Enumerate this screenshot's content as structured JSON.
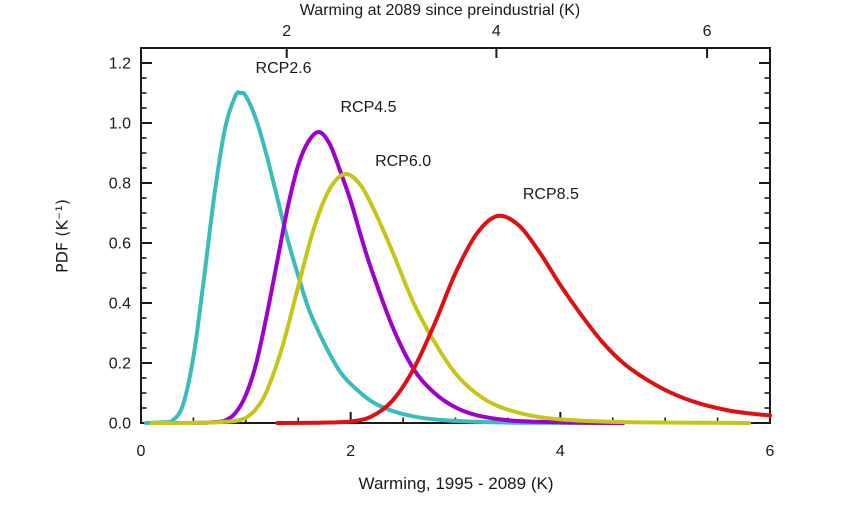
{
  "chart_data": {
    "type": "line",
    "title": "Warming at 2089 since preindustrial (K)",
    "xlabel": "Warming, 1995 - 2089 (K)",
    "ylabel": "PDF (K⁻¹)",
    "xlim": [
      0,
      6
    ],
    "ylim": [
      0,
      1.25
    ],
    "grid": false,
    "legend_position": "inline-labels",
    "x_major_ticks": [
      {
        "label": "0",
        "v": 0
      },
      {
        "label": "2",
        "v": 2
      },
      {
        "label": "4",
        "v": 4
      },
      {
        "label": "6",
        "v": 6
      }
    ],
    "x_minor_step": 0.5,
    "y_major_ticks": [
      {
        "label": "0.0",
        "v": 0.0
      },
      {
        "label": "0.2",
        "v": 0.2
      },
      {
        "label": "0.4",
        "v": 0.4
      },
      {
        "label": "0.6",
        "v": 0.6
      },
      {
        "label": "0.8",
        "v": 0.8
      },
      {
        "label": "1.0",
        "v": 1.0
      },
      {
        "label": "1.2",
        "v": 1.2
      }
    ],
    "y_minor_step": 0.05,
    "top_axis": {
      "label": "Warming at 2089 since preindustrial (K)",
      "offset_K": 0.61,
      "ticks": [
        {
          "label": "2",
          "bottom_x": 1.39
        },
        {
          "label": "4",
          "bottom_x": 3.39
        },
        {
          "label": "6",
          "bottom_x": 5.4
        }
      ]
    },
    "series": [
      {
        "name": "RCP2.6",
        "color": "#3bbcbc",
        "peak": {
          "x": 0.95,
          "y": 1.1
        },
        "label_pos": [
          1.36,
          1.18
        ],
        "points": [
          [
            0.05,
            0
          ],
          [
            0.2,
            0.002
          ],
          [
            0.3,
            0.008
          ],
          [
            0.4,
            0.06
          ],
          [
            0.5,
            0.22
          ],
          [
            0.6,
            0.48
          ],
          [
            0.7,
            0.76
          ],
          [
            0.8,
            0.98
          ],
          [
            0.9,
            1.09
          ],
          [
            0.95,
            1.1
          ],
          [
            1.0,
            1.09
          ],
          [
            1.1,
            1.01
          ],
          [
            1.2,
            0.89
          ],
          [
            1.3,
            0.75
          ],
          [
            1.4,
            0.61
          ],
          [
            1.5,
            0.49
          ],
          [
            1.6,
            0.38
          ],
          [
            1.7,
            0.3
          ],
          [
            1.8,
            0.23
          ],
          [
            1.9,
            0.17
          ],
          [
            2.0,
            0.13
          ],
          [
            2.2,
            0.072
          ],
          [
            2.4,
            0.04
          ],
          [
            2.6,
            0.022
          ],
          [
            2.8,
            0.012
          ],
          [
            3.0,
            0.007
          ],
          [
            3.3,
            0.003
          ],
          [
            3.6,
            0.001
          ],
          [
            4.0,
            0.0005
          ],
          [
            4.5,
            0
          ]
        ]
      },
      {
        "name": "RCP4.5",
        "color": "#9f00cb",
        "peak": {
          "x": 1.7,
          "y": 0.97
        },
        "label_pos": [
          2.17,
          1.05
        ],
        "points": [
          [
            0.5,
            0
          ],
          [
            0.6,
            0.001
          ],
          [
            0.7,
            0.003
          ],
          [
            0.8,
            0.008
          ],
          [
            0.9,
            0.033
          ],
          [
            1.0,
            0.093
          ],
          [
            1.1,
            0.2
          ],
          [
            1.2,
            0.36
          ],
          [
            1.3,
            0.54
          ],
          [
            1.4,
            0.72
          ],
          [
            1.5,
            0.86
          ],
          [
            1.6,
            0.94
          ],
          [
            1.7,
            0.97
          ],
          [
            1.8,
            0.93
          ],
          [
            1.9,
            0.84
          ],
          [
            2.0,
            0.74
          ],
          [
            2.1,
            0.62
          ],
          [
            2.2,
            0.51
          ],
          [
            2.4,
            0.32
          ],
          [
            2.6,
            0.18
          ],
          [
            2.8,
            0.1
          ],
          [
            3.0,
            0.052
          ],
          [
            3.2,
            0.026
          ],
          [
            3.5,
            0.009
          ],
          [
            3.8,
            0.004
          ],
          [
            4.2,
            0.001
          ],
          [
            4.6,
            0
          ]
        ]
      },
      {
        "name": "RCP6.0",
        "color": "#c6c61a",
        "peak": {
          "x": 1.95,
          "y": 0.83
        },
        "label_pos": [
          2.5,
          0.87
        ],
        "points": [
          [
            0.1,
            0
          ],
          [
            0.5,
            0.0005
          ],
          [
            0.7,
            0.002
          ],
          [
            0.8,
            0.004
          ],
          [
            0.9,
            0.007
          ],
          [
            1.0,
            0.017
          ],
          [
            1.1,
            0.048
          ],
          [
            1.2,
            0.107
          ],
          [
            1.35,
            0.256
          ],
          [
            1.5,
            0.456
          ],
          [
            1.65,
            0.65
          ],
          [
            1.8,
            0.78
          ],
          [
            1.95,
            0.83
          ],
          [
            2.1,
            0.79
          ],
          [
            2.25,
            0.69
          ],
          [
            2.4,
            0.57
          ],
          [
            2.6,
            0.4
          ],
          [
            2.8,
            0.27
          ],
          [
            3.0,
            0.165
          ],
          [
            3.2,
            0.098
          ],
          [
            3.4,
            0.057
          ],
          [
            3.7,
            0.026
          ],
          [
            4.0,
            0.012
          ],
          [
            4.4,
            0.005
          ],
          [
            4.8,
            0.002
          ],
          [
            5.3,
            0.001
          ],
          [
            5.8,
            0
          ]
        ]
      },
      {
        "name": "RCP8.5",
        "color": "#dd1111",
        "peak": {
          "x": 3.4,
          "y": 0.69
        },
        "label_pos": [
          3.91,
          0.76
        ],
        "points": [
          [
            1.3,
            0
          ],
          [
            1.7,
            0.001
          ],
          [
            2.0,
            0.005
          ],
          [
            2.2,
            0.022
          ],
          [
            2.4,
            0.075
          ],
          [
            2.6,
            0.18
          ],
          [
            2.8,
            0.33
          ],
          [
            3.0,
            0.5
          ],
          [
            3.2,
            0.63
          ],
          [
            3.4,
            0.69
          ],
          [
            3.6,
            0.66
          ],
          [
            3.8,
            0.57
          ],
          [
            4.0,
            0.46
          ],
          [
            4.2,
            0.36
          ],
          [
            4.4,
            0.27
          ],
          [
            4.6,
            0.2
          ],
          [
            4.8,
            0.15
          ],
          [
            5.0,
            0.11
          ],
          [
            5.2,
            0.08
          ],
          [
            5.4,
            0.058
          ],
          [
            5.6,
            0.042
          ],
          [
            5.8,
            0.032
          ],
          [
            6.0,
            0.025
          ]
        ]
      }
    ]
  }
}
